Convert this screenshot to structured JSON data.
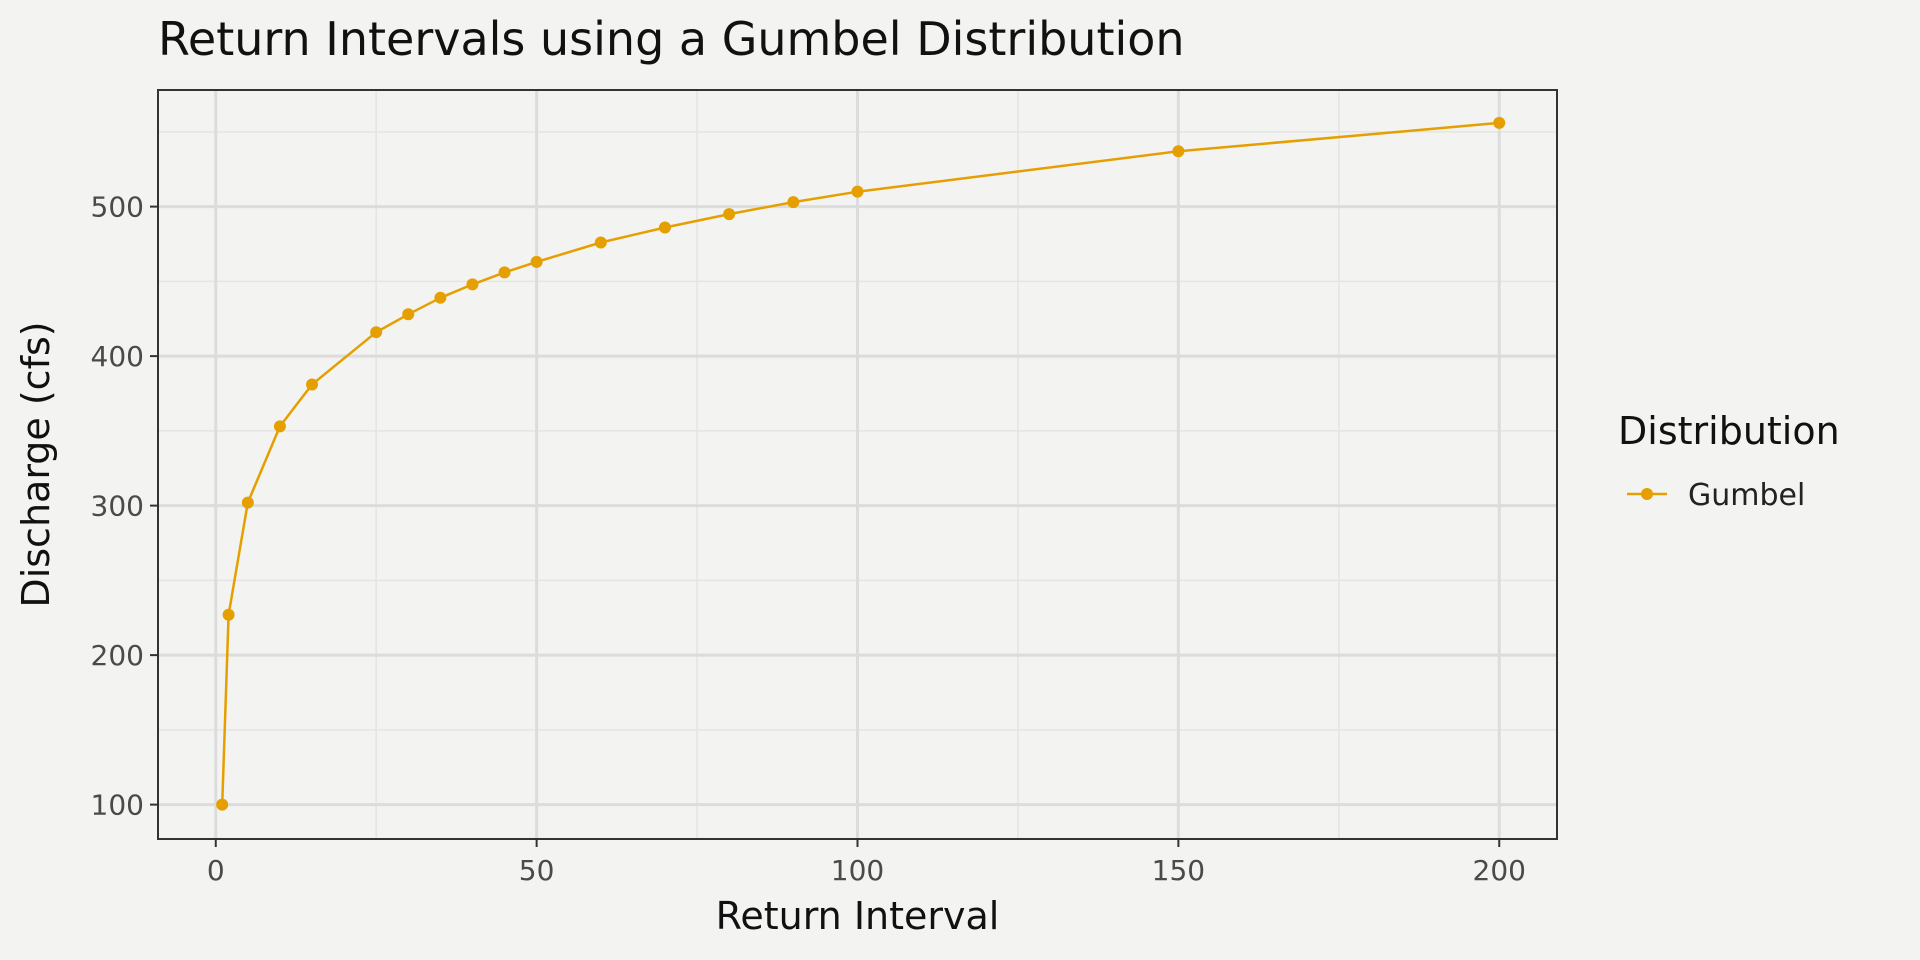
{
  "chart_data": {
    "type": "line",
    "title": "Return Intervals using a Gumbel Distribution",
    "xlabel": "Return Interval",
    "ylabel": "Discharge (cfs)",
    "xlim": [
      -9,
      209
    ],
    "ylim": [
      77,
      578
    ],
    "x_ticks": [
      0,
      50,
      100,
      150,
      200
    ],
    "x_minor_ticks": [
      25,
      75,
      125,
      175
    ],
    "y_ticks": [
      100,
      200,
      300,
      400,
      500
    ],
    "y_minor_ticks": [
      150,
      250,
      350,
      450,
      550
    ],
    "grid": true,
    "legend": {
      "title": "Distribution",
      "position": "right"
    },
    "series": [
      {
        "name": "Gumbel",
        "color": "#E69F00",
        "x": [
          1,
          2,
          5,
          10,
          15,
          25,
          30,
          35,
          40,
          45,
          50,
          60,
          70,
          80,
          90,
          100,
          150,
          200
        ],
        "y": [
          100,
          227,
          302,
          353,
          381,
          416,
          428,
          439,
          448,
          456,
          463,
          476,
          486,
          495,
          503,
          510,
          537,
          556
        ]
      }
    ]
  }
}
